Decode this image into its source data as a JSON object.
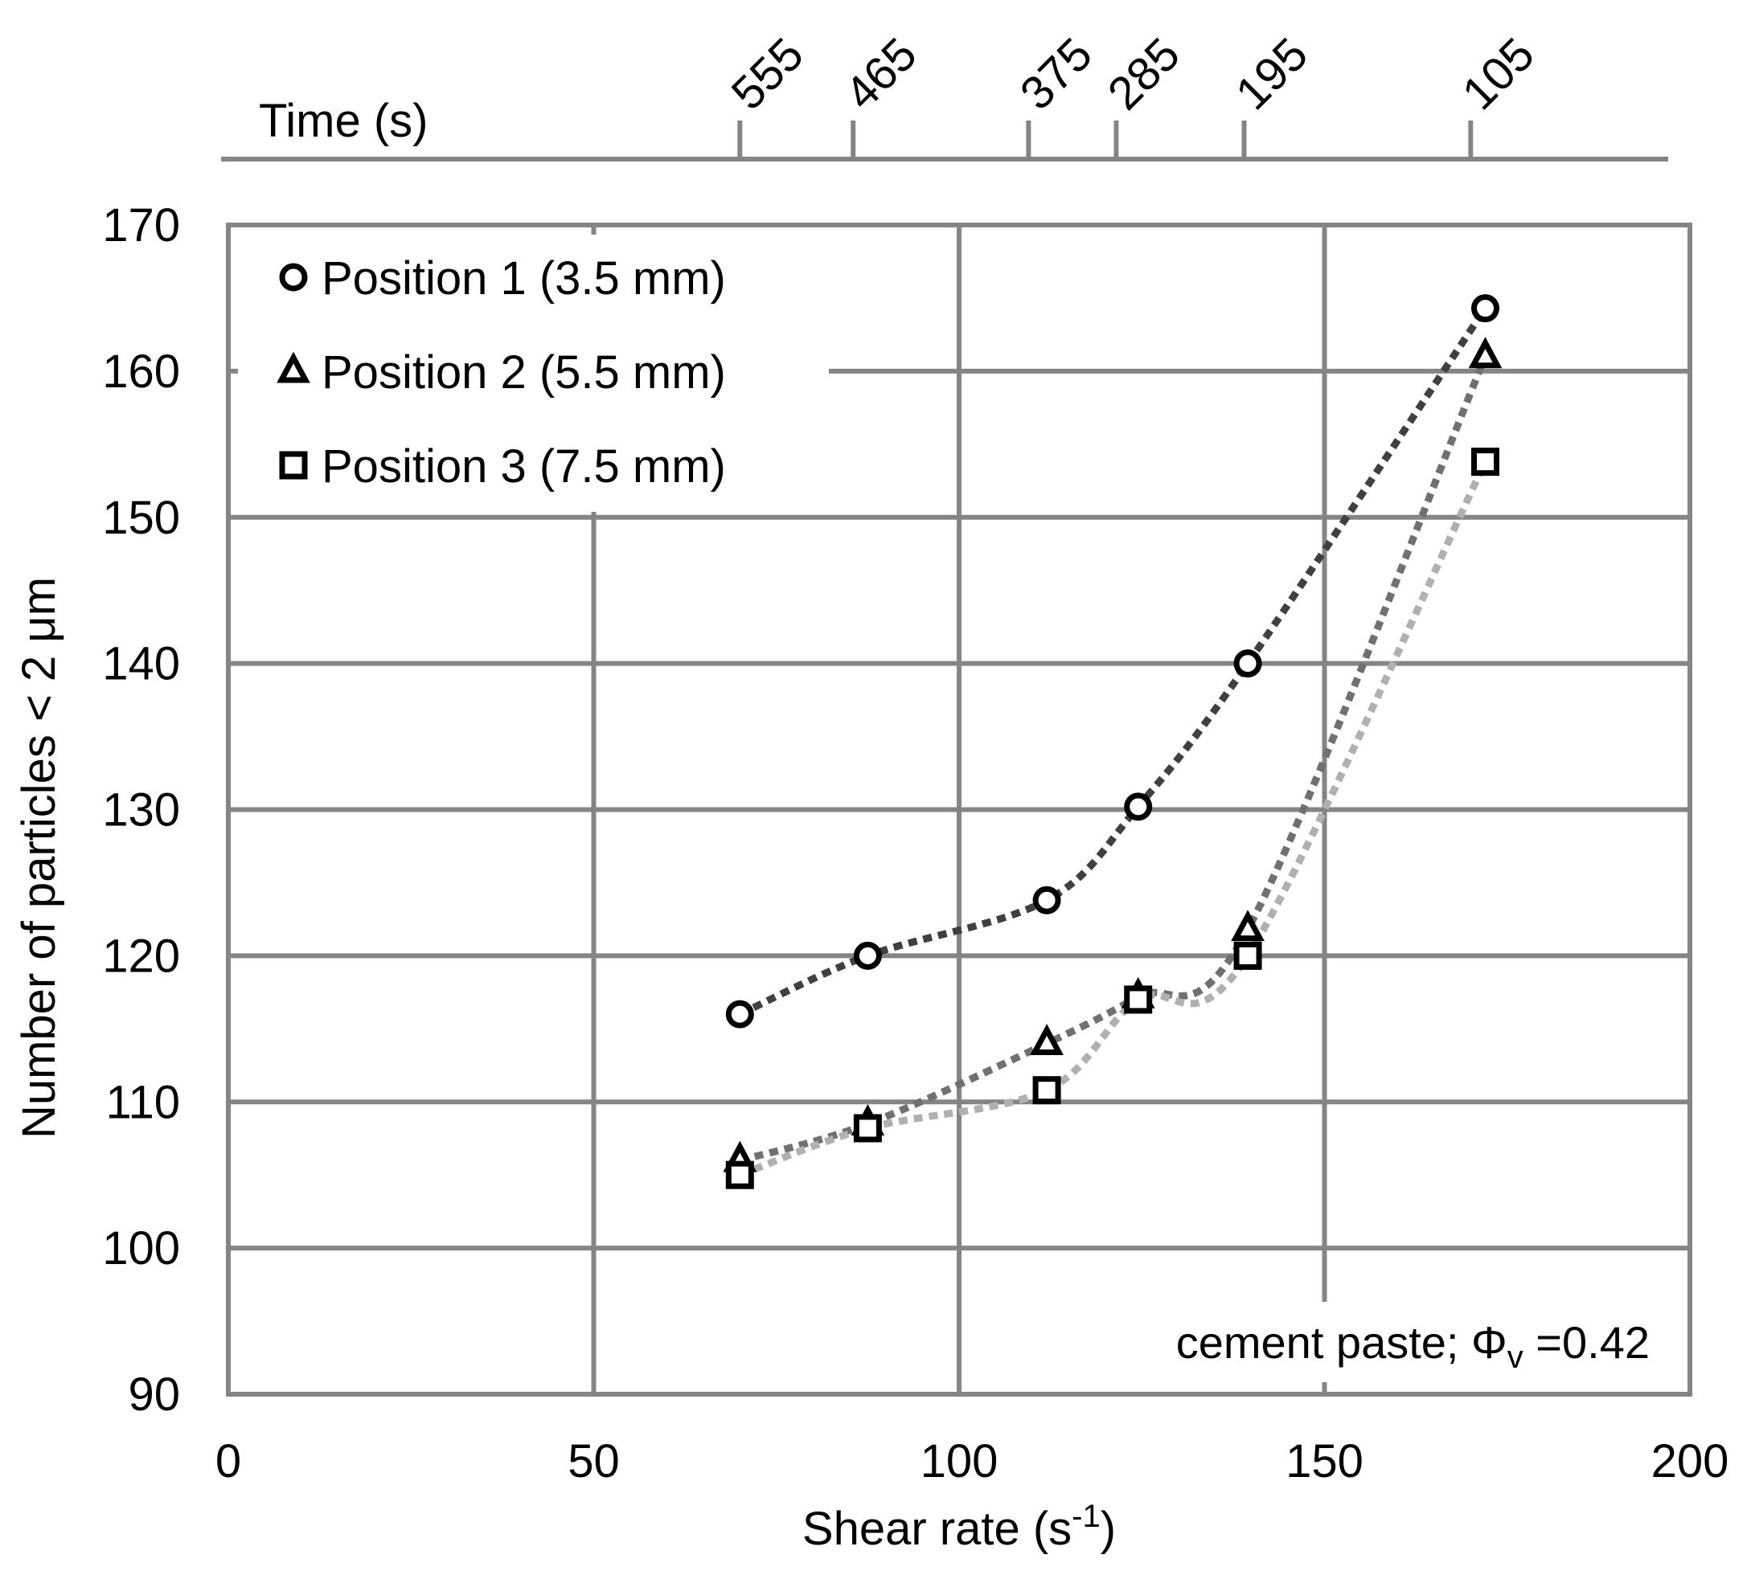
{
  "chart_data": {
    "type": "scatter",
    "xlabel": "Shear rate (s",
    "xlabel_sup": "-1",
    "xlabel_end": ")",
    "ylabel": "Number of particles < 2 μm",
    "xlim": [
      0,
      200
    ],
    "ylim": [
      90,
      170
    ],
    "x_ticks": [
      "0",
      "50",
      "100",
      "150",
      "200"
    ],
    "y_ticks": [
      "90",
      "100",
      "110",
      "120",
      "130",
      "140",
      "150",
      "160",
      "170"
    ],
    "grid": true,
    "legend_position": "top-left",
    "top_axis": {
      "label": "Time (s)",
      "ticks": [
        {
          "label": "555",
          "shear_rate": 70
        },
        {
          "label": "465",
          "shear_rate": 85.5
        },
        {
          "label": "375",
          "shear_rate": 109.5
        },
        {
          "label": "285",
          "shear_rate": 121.5
        },
        {
          "label": "195",
          "shear_rate": 139
        },
        {
          "label": "105",
          "shear_rate": 170
        }
      ]
    },
    "annotation": {
      "prefix": "cement paste; Φ",
      "sub": "v",
      "suffix": " =0.42"
    },
    "series": [
      {
        "name": "Position 1 (3.5 mm)",
        "marker": "circle",
        "trend_color": "#404040",
        "x": [
          70,
          87.5,
          112,
          124.5,
          139.5,
          172
        ],
        "y": [
          116,
          120,
          123.8,
          130.2,
          140,
          164.3
        ]
      },
      {
        "name": "Position 2 (5.5 mm)",
        "marker": "triangle",
        "trend_color": "#707070",
        "x": [
          70,
          87.5,
          112,
          124.5,
          139.5,
          172
        ],
        "y": [
          106,
          108.5,
          114,
          117.2,
          121.8,
          161
        ]
      },
      {
        "name": "Position 3 (7.5 mm)",
        "marker": "square",
        "trend_color": "#b0b0b0",
        "x": [
          70,
          87.5,
          112,
          124.5,
          139.5,
          172
        ],
        "y": [
          105,
          108.2,
          110.8,
          117,
          120,
          153.8
        ]
      }
    ]
  }
}
